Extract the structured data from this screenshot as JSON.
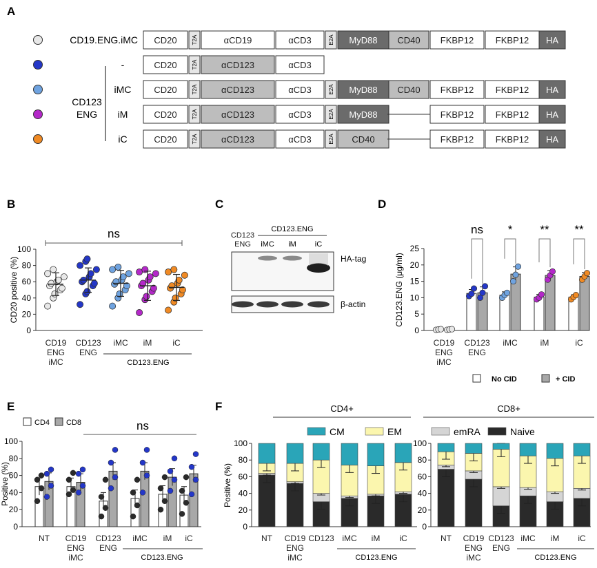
{
  "colors": {
    "white": "#ffffff",
    "dark_gray": "#6b6b6b",
    "mid_gray": "#bdbdbd",
    "light_gray": "#e6e6e6",
    "outline": "#333333",
    "cd19": "#e8e8e8",
    "cd123": "#2437c8",
    "imc": "#6fa3e0",
    "im": "#b428c9",
    "ic": "#f08a24",
    "cm": "#2aa5b8",
    "em": "#fbf6ae",
    "emra": "#d5d5d5",
    "naive": "#2a2a2a",
    "bar_gray": "#a8a8a8"
  },
  "panel_a": {
    "letter": "A",
    "group_label": [
      "CD123",
      "ENG"
    ],
    "constructs": [
      {
        "label": "CD19.ENG.iMC",
        "color": "#e8e8e8",
        "segments": [
          {
            "text": "CD20",
            "style": "white"
          },
          {
            "text": "T2A",
            "style": "small"
          },
          {
            "text": "αCD19",
            "style": "white"
          },
          {
            "text": "αCD3",
            "style": "white"
          },
          {
            "text": "E2A",
            "style": "small"
          },
          {
            "text": "MyD88",
            "style": "dark"
          },
          {
            "text": "CD40",
            "style": "mid"
          },
          {
            "text": "FKBP12",
            "style": "white"
          },
          {
            "text": "FKBP12",
            "style": "white"
          },
          {
            "text": "HA",
            "style": "dark"
          }
        ]
      },
      {
        "label": "-",
        "color": "#2437c8",
        "segments": [
          {
            "text": "CD20",
            "style": "white"
          },
          {
            "text": "T2A",
            "style": "small"
          },
          {
            "text": "αCD123",
            "style": "mid"
          },
          {
            "text": "αCD3",
            "style": "white"
          }
        ]
      },
      {
        "label": "iMC",
        "color": "#6fa3e0",
        "segments": [
          {
            "text": "CD20",
            "style": "white"
          },
          {
            "text": "T2A",
            "style": "small"
          },
          {
            "text": "αCD123",
            "style": "mid"
          },
          {
            "text": "αCD3",
            "style": "white"
          },
          {
            "text": "E2A",
            "style": "small"
          },
          {
            "text": "MyD88",
            "style": "dark"
          },
          {
            "text": "CD40",
            "style": "mid"
          },
          {
            "text": "FKBP12",
            "style": "white"
          },
          {
            "text": "FKBP12",
            "style": "white"
          },
          {
            "text": "HA",
            "style": "dark"
          }
        ]
      },
      {
        "label": "iM",
        "color": "#b428c9",
        "segments": [
          {
            "text": "CD20",
            "style": "white"
          },
          {
            "text": "T2A",
            "style": "small"
          },
          {
            "text": "αCD123",
            "style": "mid"
          },
          {
            "text": "αCD3",
            "style": "white"
          },
          {
            "text": "E2A",
            "style": "small"
          },
          {
            "text": "MyD88",
            "style": "dark"
          },
          {
            "text": "",
            "style": "line"
          },
          {
            "text": "FKBP12",
            "style": "white"
          },
          {
            "text": "FKBP12",
            "style": "white"
          },
          {
            "text": "HA",
            "style": "dark"
          }
        ]
      },
      {
        "label": "iC",
        "color": "#f08a24",
        "segments": [
          {
            "text": "CD20",
            "style": "white"
          },
          {
            "text": "T2A",
            "style": "small"
          },
          {
            "text": "αCD123",
            "style": "mid"
          },
          {
            "text": "αCD3",
            "style": "white"
          },
          {
            "text": "E2A",
            "style": "small"
          },
          {
            "text": "CD40",
            "style": "mid"
          },
          {
            "text": "",
            "style": "line"
          },
          {
            "text": "FKBP12",
            "style": "white"
          },
          {
            "text": "FKBP12",
            "style": "white"
          },
          {
            "text": "HA",
            "style": "dark"
          }
        ]
      }
    ]
  },
  "panel_b": {
    "letter": "B",
    "chart_data": {
      "type": "scatter",
      "ylabel": "CD20 positive (%)",
      "ylim": [
        0,
        100
      ],
      "yticks": [
        0,
        20,
        40,
        60,
        80,
        100
      ],
      "significance": "ns",
      "group_bracket_label": "CD123.ENG",
      "groups": [
        {
          "label": [
            "CD19",
            "ENG",
            "iMC"
          ],
          "color": "#e8e8e8",
          "mean": 57,
          "sd": 14,
          "values": [
            30,
            40,
            45,
            50,
            52,
            55,
            58,
            60,
            62,
            66,
            70,
            75
          ]
        },
        {
          "label": [
            "CD123",
            "ENG"
          ],
          "color": "#2437c8",
          "mean": 62,
          "sd": 15,
          "values": [
            32,
            45,
            48,
            55,
            58,
            60,
            62,
            66,
            70,
            75,
            80,
            85,
            88
          ]
        },
        {
          "label": [
            "iMC"
          ],
          "color": "#6fa3e0",
          "mean": 58,
          "sd": 16,
          "values": [
            30,
            40,
            45,
            50,
            55,
            57,
            60,
            62,
            66,
            70,
            75,
            78
          ]
        },
        {
          "label": [
            "iM"
          ],
          "color": "#b428c9",
          "mean": 55,
          "sd": 18,
          "values": [
            22,
            38,
            42,
            48,
            52,
            55,
            58,
            62,
            66,
            70,
            72,
            75
          ]
        },
        {
          "label": [
            "iC"
          ],
          "color": "#f08a24",
          "mean": 53,
          "sd": 16,
          "values": [
            25,
            35,
            40,
            45,
            50,
            52,
            55,
            58,
            62,
            68,
            72,
            75
          ]
        }
      ]
    }
  },
  "panel_c": {
    "letter": "C",
    "lane_header_top": "CD123.ENG",
    "lanes": [
      [
        "CD123",
        "ENG"
      ],
      [
        "iMC"
      ],
      [
        "iM"
      ],
      [
        "iC"
      ]
    ],
    "bands": [
      "HA-tag",
      "β-actin"
    ]
  },
  "panel_d": {
    "letter": "D",
    "chart_data": {
      "type": "bar",
      "ylabel": "CD123.ENG (μg/ml)",
      "ylim": [
        0,
        25
      ],
      "yticks": [
        0,
        5,
        10,
        15,
        20,
        25
      ],
      "significance": [
        "",
        "ns",
        "*",
        "**",
        "**"
      ],
      "legend": [
        "No CID",
        "+ CID"
      ],
      "groups": [
        {
          "label": [
            "CD19",
            "ENG",
            "iMC"
          ],
          "color": "#e8e8e8",
          "no_cid": 0.3,
          "cid": 0.3,
          "no_cid_sd": 0.1,
          "cid_sd": 0.1,
          "no_cid_pts": [
            0.2,
            0.3,
            0.4
          ],
          "cid_pts": [
            0.2,
            0.3,
            0.4
          ]
        },
        {
          "label": [
            "CD123",
            "ENG"
          ],
          "color": "#2437c8",
          "no_cid": 11.3,
          "cid": 11.5,
          "no_cid_sd": 1.2,
          "cid_sd": 1.8,
          "no_cid_pts": [
            10.5,
            11.2,
            12.8
          ],
          "cid_pts": [
            10.0,
            11.5,
            13.5
          ]
        },
        {
          "label": [
            "iMC"
          ],
          "color": "#6fa3e0",
          "no_cid": 10.8,
          "cid": 17.2,
          "no_cid_sd": 1.0,
          "cid_sd": 2.2,
          "no_cid_pts": [
            10.0,
            10.8,
            11.5
          ],
          "cid_pts": [
            15.0,
            17.0,
            19.5
          ]
        },
        {
          "label": [
            "iM"
          ],
          "color": "#b428c9",
          "no_cid": 10.2,
          "cid": 16.8,
          "no_cid_sd": 0.8,
          "cid_sd": 1.5,
          "no_cid_pts": [
            9.5,
            10.0,
            11.0
          ],
          "cid_pts": [
            15.5,
            16.8,
            18.0
          ]
        },
        {
          "label": [
            "iC"
          ],
          "color": "#f08a24",
          "no_cid": 10.2,
          "cid": 16.5,
          "no_cid_sd": 0.7,
          "cid_sd": 1.2,
          "no_cid_pts": [
            9.5,
            10.2,
            10.8
          ],
          "cid_pts": [
            15.5,
            16.5,
            17.5
          ]
        }
      ]
    }
  },
  "panel_e": {
    "letter": "E",
    "chart_data": {
      "type": "bar",
      "ylabel": "Positive (%)",
      "ylim": [
        0,
        100
      ],
      "yticks": [
        0,
        20,
        40,
        60,
        80,
        100
      ],
      "significance": "ns",
      "legend": [
        "CD4",
        "CD8"
      ],
      "group_bracket_label": "CD123.ENG",
      "groups": [
        {
          "label": [
            "NT"
          ],
          "cd4": 47,
          "cd8": 53,
          "cd4_pts": [
            30,
            45,
            55,
            60
          ],
          "cd8_pts": [
            35,
            48,
            62,
            67
          ]
        },
        {
          "label": [
            "CD19",
            "ENG",
            "iMC"
          ],
          "cd4": 47,
          "cd8": 52,
          "cd4_pts": [
            38,
            43,
            55,
            63
          ],
          "cd8_pts": [
            40,
            48,
            62,
            67
          ]
        },
        {
          "label": [
            "CD123",
            "ENG"
          ],
          "cd4": 30,
          "cd8": 65,
          "cd4_pts": [
            12,
            22,
            35,
            55
          ],
          "cd8_pts": [
            45,
            58,
            75,
            90
          ]
        },
        {
          "label": [
            "iMC"
          ],
          "cd4": 33,
          "cd8": 65,
          "cd4_pts": [
            12,
            25,
            40,
            55
          ],
          "cd8_pts": [
            40,
            60,
            75,
            90
          ]
        },
        {
          "label": [
            "iM"
          ],
          "cd4": 38,
          "cd8": 58,
          "cd4_pts": [
            20,
            30,
            45,
            58
          ],
          "cd8_pts": [
            42,
            55,
            65,
            80
          ]
        },
        {
          "label": [
            "iC"
          ],
          "cd4": 37,
          "cd8": 62,
          "cd4_pts": [
            15,
            28,
            42,
            58
          ],
          "cd8_pts": [
            38,
            55,
            70,
            85
          ]
        }
      ]
    }
  },
  "panel_f": {
    "letter": "F",
    "chart_data": {
      "type": "bar",
      "stacked": true,
      "ylabel": "Positive (%)",
      "ylim": [
        0,
        100
      ],
      "yticks": [
        0,
        20,
        40,
        60,
        80,
        100
      ],
      "legend": [
        "CM",
        "EM",
        "emRA",
        "Naive"
      ],
      "group_bracket_label": "CD123.ENG",
      "subpanels": [
        {
          "title": "CD4+",
          "categories": [
            [
              "NT"
            ],
            [
              "CD19",
              "ENG",
              "iMC"
            ],
            [
              "CD123"
            ],
            [
              "iMC"
            ],
            [
              "iM"
            ],
            [
              "iC"
            ]
          ],
          "naive": [
            62,
            52,
            30,
            34,
            37,
            39
          ],
          "emra": [
            2,
            2,
            10,
            3,
            2,
            3
          ],
          "em": [
            12,
            22,
            40,
            37,
            34,
            35
          ],
          "cm": [
            24,
            24,
            20,
            26,
            27,
            23
          ]
        },
        {
          "title": "CD8+",
          "categories": [
            [
              "NT"
            ],
            [
              "CD19",
              "ENG",
              "iMC"
            ],
            [
              "CD123",
              "ENG"
            ],
            [
              "iMC"
            ],
            [
              "iM"
            ],
            [
              "iC"
            ]
          ],
          "naive": [
            69,
            57,
            25,
            37,
            30,
            34
          ],
          "emra": [
            5,
            10,
            23,
            10,
            12,
            12
          ],
          "em": [
            16,
            21,
            45,
            38,
            40,
            39
          ],
          "cm": [
            10,
            12,
            7,
            15,
            18,
            15
          ]
        }
      ]
    }
  }
}
